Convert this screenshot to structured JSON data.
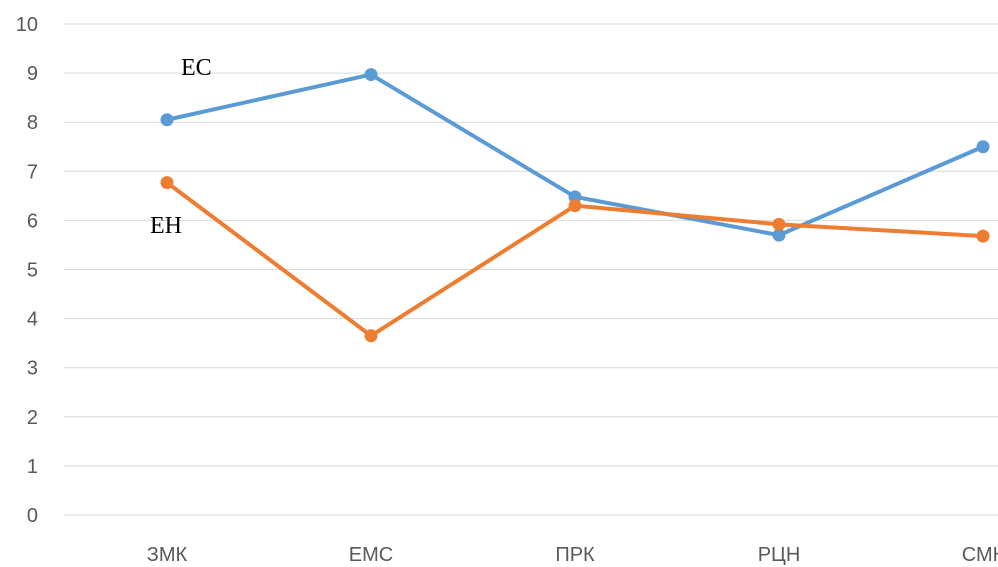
{
  "chart_data": {
    "type": "line",
    "categories": [
      "ЗМК",
      "ЕМС",
      "ПРК",
      "РЦН",
      "СМК"
    ],
    "series": [
      {
        "name": "ЕС",
        "color": "#5B9BD5",
        "values": [
          8.05,
          8.97,
          6.48,
          5.7,
          7.5
        ]
      },
      {
        "name": "ЕН",
        "color": "#ED7D31",
        "values": [
          6.77,
          3.65,
          6.3,
          5.92,
          5.68
        ]
      }
    ],
    "ylim": [
      0,
      10
    ],
    "yticks": [
      "0",
      "1",
      "2",
      "3",
      "4",
      "5",
      "6",
      "7",
      "8",
      "9",
      "10"
    ],
    "grid": true,
    "title": "",
    "xlabel": "",
    "ylabel": ""
  }
}
